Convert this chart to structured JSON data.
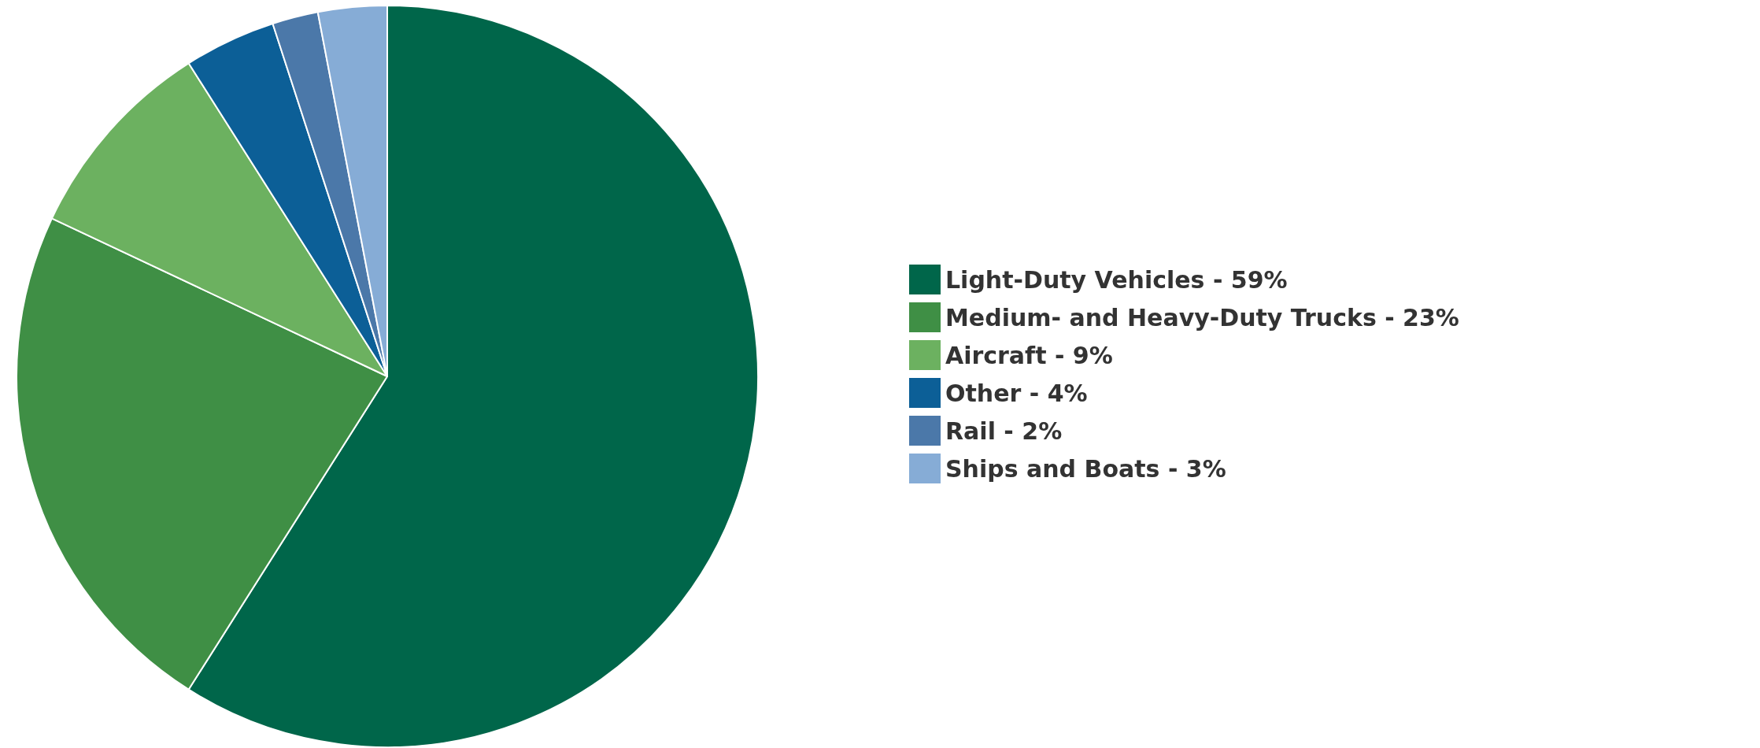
{
  "chart_data": {
    "type": "pie",
    "categories": [
      "Light-Duty Vehicles - 59%",
      "Medium- and Heavy-Duty Trucks - 23%",
      "Aircraft - 9%",
      "Other - 4%",
      "Rail - 2%",
      "Ships and Boats - 3%"
    ],
    "values": [
      59,
      23,
      9,
      4,
      2,
      3
    ],
    "colors": [
      "#00664a",
      "#3f8f45",
      "#6cb160",
      "#0c5f97",
      "#4b78a9",
      "#86acd6"
    ],
    "legend": "right"
  }
}
